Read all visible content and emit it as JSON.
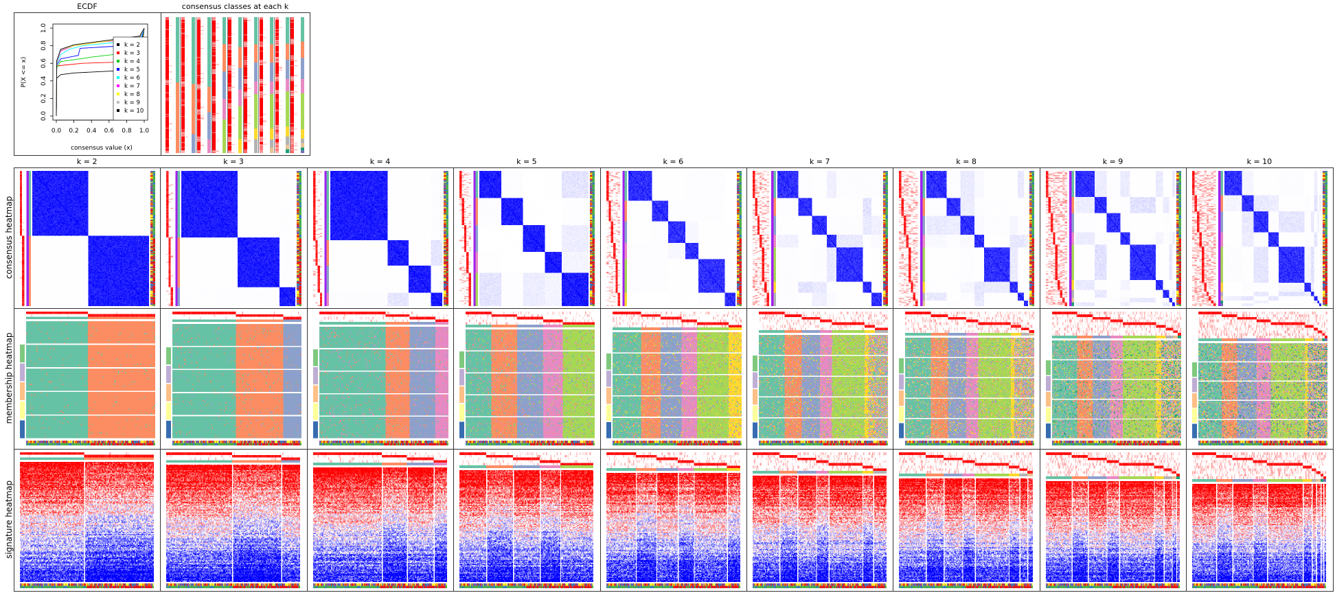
{
  "figure": {
    "ecdf_title": "ECDF",
    "classes_title": "consensus classes at each k",
    "row_labels": [
      "consensus heatmap",
      "membership heatmap",
      "signature heatmap"
    ],
    "k_labels": [
      "k = 2",
      "k = 3",
      "k = 4",
      "k = 5",
      "k = 6",
      "k = 7",
      "k = 8",
      "k = 9",
      "k = 10"
    ]
  },
  "colors": {
    "class_palette": [
      "#66C2A5",
      "#FC8D62",
      "#8DA0CB",
      "#E78AC3",
      "#A6D854",
      "#FFD92F",
      "#B3B3B3",
      "#E5C494",
      "#1B9E77",
      "#7570B3"
    ],
    "consensus_high": "#0000FF",
    "consensus_low": "#FFFFFF",
    "probability": "#FF0000",
    "silhouette": "#A020F0",
    "signature_low": "#0000FF",
    "signature_mid": "#FFFFFF",
    "signature_high": "#FF0000",
    "sample_annotation_1": [
      "#FF7F00",
      "#FFFF33",
      "#984EA3",
      "#E41A1C",
      "#377EB8"
    ],
    "sample_annotation_2": [
      "#4DAF4A",
      "#377EB8",
      "#E41A1C"
    ],
    "run_groups": [
      "#7FC97F",
      "#BEAED4",
      "#FDC086",
      "#FFFF99",
      "#386CB0"
    ]
  },
  "chart_data": [
    {
      "type": "line",
      "title": "ECDF",
      "xlabel": "consensus value (x)",
      "ylabel": "P(X <= x)",
      "xlim": [
        0,
        1
      ],
      "ylim": [
        0,
        1
      ],
      "xticks": [
        "0.0",
        "0.2",
        "0.4",
        "0.6",
        "0.8",
        "1.0"
      ],
      "yticks": [
        "0.0",
        "0.2",
        "0.4",
        "0.6",
        "0.8",
        "1.0"
      ],
      "legend_position": "right",
      "series": [
        {
          "name": "k = 2",
          "color": "#000000",
          "x": [
            0,
            0.005,
            0.05,
            0.2,
            0.6,
            0.95,
            1.0
          ],
          "y": [
            0,
            0.43,
            0.47,
            0.49,
            0.51,
            0.52,
            1.0
          ]
        },
        {
          "name": "k = 3",
          "color": "#FF0000",
          "x": [
            0,
            0.005,
            0.1,
            0.3,
            0.6,
            0.95,
            1.0
          ],
          "y": [
            0,
            0.57,
            0.58,
            0.6,
            0.61,
            0.62,
            1.0
          ]
        },
        {
          "name": "k = 4",
          "color": "#00CD00",
          "x": [
            0,
            0.005,
            0.05,
            0.2,
            0.4,
            0.65,
            0.95,
            1.0
          ],
          "y": [
            0,
            0.55,
            0.62,
            0.64,
            0.67,
            0.7,
            0.71,
            1.0
          ]
        },
        {
          "name": "k = 5",
          "color": "#0000FF",
          "x": [
            0,
            0.005,
            0.05,
            0.2,
            0.25,
            0.27,
            0.6,
            0.95,
            1.0
          ],
          "y": [
            0,
            0.58,
            0.65,
            0.68,
            0.69,
            0.77,
            0.79,
            0.8,
            1.0
          ]
        },
        {
          "name": "k = 6",
          "color": "#00FFFF",
          "x": [
            0,
            0.005,
            0.05,
            0.15,
            0.3,
            0.6,
            0.95,
            1.0
          ],
          "y": [
            0,
            0.6,
            0.7,
            0.76,
            0.8,
            0.83,
            0.86,
            1.0
          ]
        },
        {
          "name": "k = 7",
          "color": "#FF00FF",
          "x": [
            0,
            0.005,
            0.05,
            0.2,
            0.5,
            0.8,
            0.95,
            1.0
          ],
          "y": [
            0,
            0.61,
            0.74,
            0.8,
            0.84,
            0.87,
            0.89,
            1.0
          ]
        },
        {
          "name": "k = 8",
          "color": "#FFFF00",
          "x": [
            0,
            0.005,
            0.05,
            0.2,
            0.5,
            0.8,
            0.95,
            1.0
          ],
          "y": [
            0,
            0.62,
            0.75,
            0.8,
            0.84,
            0.88,
            0.9,
            1.0
          ]
        },
        {
          "name": "k = 9",
          "color": "#BEBEBE",
          "x": [
            0,
            0.005,
            0.05,
            0.2,
            0.5,
            0.8,
            0.95,
            1.0
          ],
          "y": [
            0,
            0.62,
            0.75,
            0.81,
            0.85,
            0.88,
            0.9,
            1.0
          ]
        },
        {
          "name": "k = 10",
          "color": "#000000",
          "x": [
            0,
            0.005,
            0.05,
            0.2,
            0.5,
            0.8,
            0.95,
            1.0
          ],
          "y": [
            0,
            0.63,
            0.76,
            0.81,
            0.85,
            0.89,
            0.91,
            1.0
          ]
        }
      ]
    },
    {
      "type": "heatmap",
      "k": [
        2,
        3,
        4,
        5,
        6,
        7,
        8,
        9,
        10
      ],
      "class_proportions": [
        [
          0.48,
          0.52
        ],
        [
          0.49,
          0.37,
          0.14
        ],
        [
          0.51,
          0.19,
          0.2,
          0.1
        ],
        [
          0.2,
          0.2,
          0.2,
          0.15,
          0.25
        ],
        [
          0.22,
          0.15,
          0.16,
          0.12,
          0.25,
          0.1
        ],
        [
          0.2,
          0.13,
          0.14,
          0.1,
          0.25,
          0.08,
          0.1
        ],
        [
          0.2,
          0.13,
          0.14,
          0.1,
          0.25,
          0.08,
          0.06,
          0.04
        ],
        [
          0.19,
          0.12,
          0.14,
          0.1,
          0.26,
          0.07,
          0.06,
          0.03,
          0.03
        ],
        [
          0.18,
          0.12,
          0.15,
          0.11,
          0.27,
          0.06,
          0.04,
          0.03,
          0.02,
          0.02
        ]
      ]
    }
  ]
}
